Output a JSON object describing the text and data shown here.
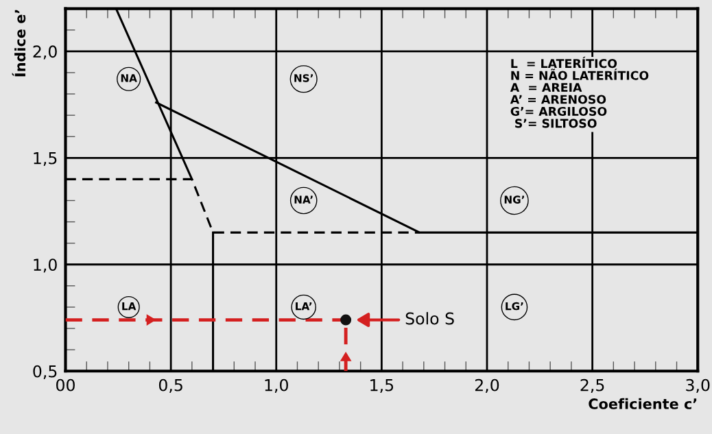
{
  "chart_data": {
    "type": "line",
    "xlabel": "Coeficiente c’",
    "ylabel": "Índice e’",
    "xlim": [
      0,
      3.0
    ],
    "ylim": [
      0.5,
      2.2
    ],
    "xticks": [
      {
        "value": 0,
        "label": "00"
      },
      {
        "value": 0.1,
        "label": null
      },
      {
        "value": 0.2,
        "label": null
      },
      {
        "value": 0.3,
        "label": null
      },
      {
        "value": 0.4,
        "label": null
      },
      {
        "value": 0.5,
        "label": "0,5"
      },
      {
        "value": 0.6,
        "label": null
      },
      {
        "value": 0.7,
        "label": null
      },
      {
        "value": 0.8,
        "label": null
      },
      {
        "value": 0.9,
        "label": null
      },
      {
        "value": 1.0,
        "label": "1,0"
      },
      {
        "value": 1.1,
        "label": null
      },
      {
        "value": 1.2,
        "label": null
      },
      {
        "value": 1.3,
        "label": null
      },
      {
        "value": 1.4,
        "label": null
      },
      {
        "value": 1.5,
        "label": "1,5"
      },
      {
        "value": 1.6,
        "label": null
      },
      {
        "value": 1.7,
        "label": null
      },
      {
        "value": 1.8,
        "label": null
      },
      {
        "value": 1.9,
        "label": null
      },
      {
        "value": 2.0,
        "label": "2,0"
      },
      {
        "value": 2.1,
        "label": null
      },
      {
        "value": 2.2,
        "label": null
      },
      {
        "value": 2.3,
        "label": null
      },
      {
        "value": 2.4,
        "label": null
      },
      {
        "value": 2.5,
        "label": "2,5"
      },
      {
        "value": 2.6,
        "label": null
      },
      {
        "value": 2.7,
        "label": null
      },
      {
        "value": 2.8,
        "label": null
      },
      {
        "value": 2.9,
        "label": null
      },
      {
        "value": 3.0,
        "label": "3,0"
      }
    ],
    "yticks": [
      {
        "value": 0.5,
        "label": "0,5"
      },
      {
        "value": 0.6,
        "label": null
      },
      {
        "value": 0.7,
        "label": null
      },
      {
        "value": 0.8,
        "label": null
      },
      {
        "value": 0.9,
        "label": null
      },
      {
        "value": 1.0,
        "label": "1,0"
      },
      {
        "value": 1.1,
        "label": null
      },
      {
        "value": 1.2,
        "label": null
      },
      {
        "value": 1.3,
        "label": null
      },
      {
        "value": 1.4,
        "label": null
      },
      {
        "value": 1.5,
        "label": "1,5"
      },
      {
        "value": 1.6,
        "label": null
      },
      {
        "value": 1.7,
        "label": null
      },
      {
        "value": 1.8,
        "label": null
      },
      {
        "value": 1.9,
        "label": null
      },
      {
        "value": 2.0,
        "label": "2,0"
      },
      {
        "value": 2.1,
        "label": null
      }
    ],
    "grid": true,
    "series": [
      {
        "color": "#000000",
        "line_style": "solid",
        "x": [
          0.24,
          0.6
        ],
        "values": [
          2.2,
          1.4
        ]
      },
      {
        "color": "#000000",
        "line_style": "solid",
        "x": [
          0.43,
          1.68,
          3.0
        ],
        "values": [
          1.76,
          1.15,
          1.15
        ]
      },
      {
        "color": "#000000",
        "line_style": "dashed",
        "x": [
          0,
          0.6,
          0.7,
          1.68
        ],
        "values": [
          1.4,
          1.4,
          1.15,
          1.15
        ]
      },
      {
        "color": "#000000",
        "line_style": "solid",
        "x": [
          0.7,
          0.7
        ],
        "values": [
          0.5,
          1.15
        ]
      },
      {
        "color": "#d42020",
        "line_style": "dashed",
        "x": [
          0,
          1.33
        ],
        "values": [
          0.74,
          0.74
        ]
      },
      {
        "color": "#d42020",
        "line_style": "dashed",
        "x": [
          1.33,
          1.33
        ],
        "values": [
          0.5,
          0.74
        ]
      },
      {
        "type": "scatter",
        "color": "#111111",
        "marker": "circle",
        "x": [
          1.33
        ],
        "values": [
          0.74
        ]
      }
    ],
    "annotations": [
      {
        "text": "NA",
        "x": 0.3,
        "y": 1.87
      },
      {
        "text": "NS’",
        "x": 1.13,
        "y": 1.87
      },
      {
        "text": "NA’",
        "x": 1.13,
        "y": 1.3
      },
      {
        "text": "NG’",
        "x": 2.13,
        "y": 1.3
      },
      {
        "text": "LA",
        "x": 0.3,
        "y": 0.8
      },
      {
        "text": "LA’",
        "x": 1.13,
        "y": 0.8
      },
      {
        "text": "LG’",
        "x": 2.13,
        "y": 0.8
      },
      "Solo S",
      "L  = LATERÍTICO",
      "N = NÃO LATERÍTICO",
      "A  = AREIA",
      "A’ = ARENOSO",
      "G’= ARGILOSO",
      " S’= SILTOSO"
    ]
  }
}
